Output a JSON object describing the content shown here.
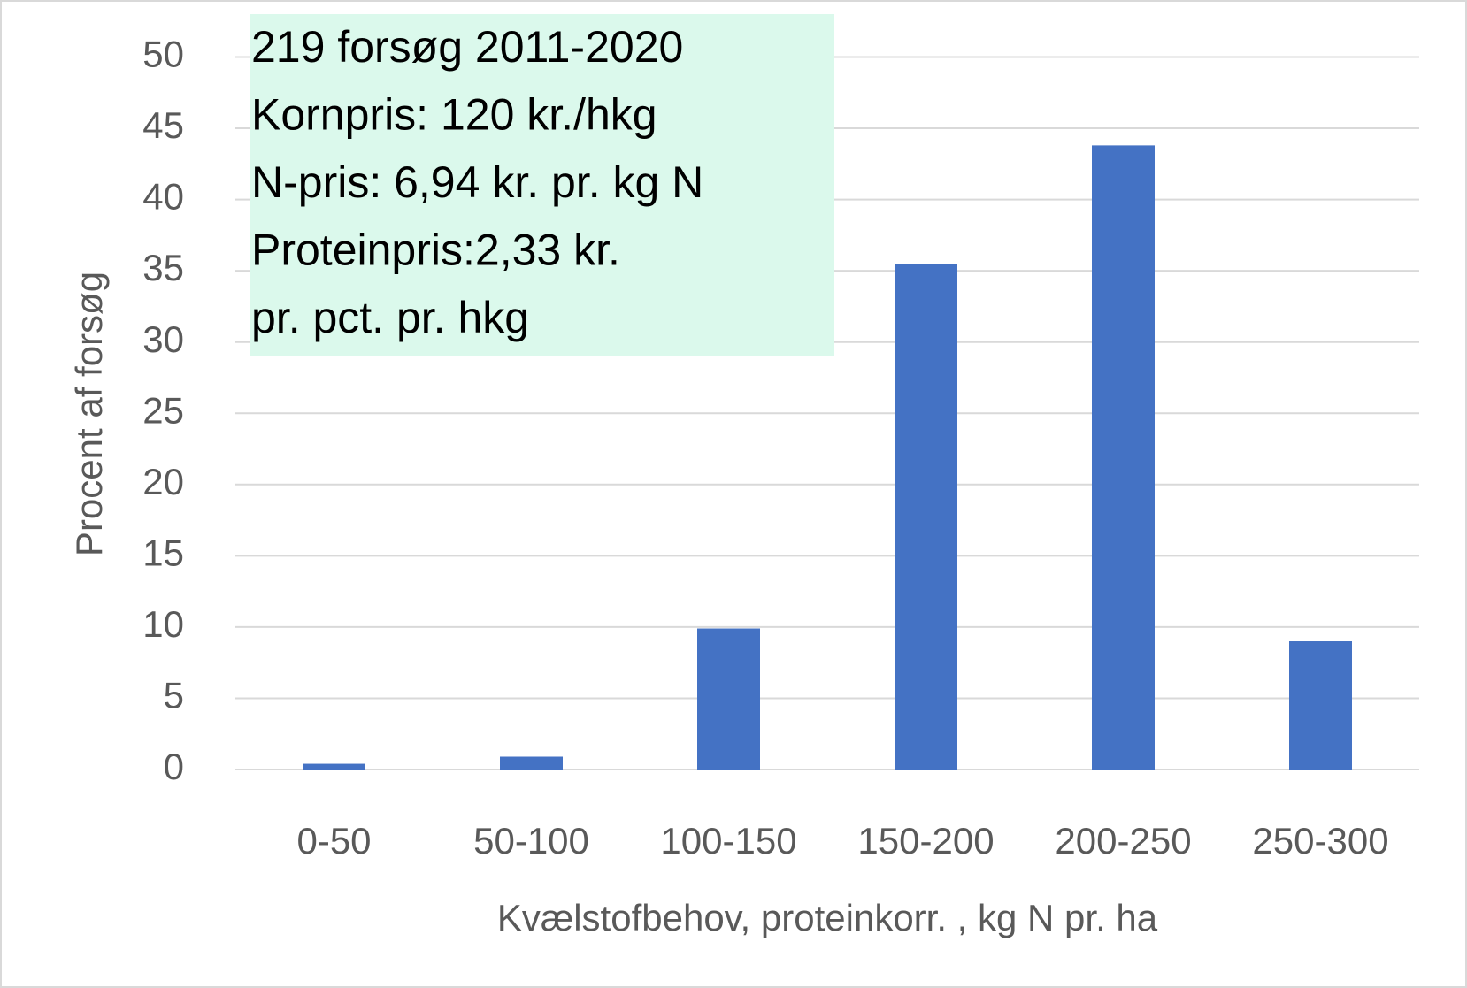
{
  "chart_data": {
    "type": "bar",
    "annotation": [
      "219 forsøg 2011-2020",
      "Kornpris: 120 kr./hkg",
      "N-pris: 6,94 kr. pr. kg N",
      "Proteinpris:2,33 kr.",
      "pr. pct. pr. hkg"
    ],
    "x_label": "Kvælstofbehov, proteinkorr. , kg N pr. ha",
    "y_label": "Procent af forsøg",
    "categories": [
      "0-50",
      "50-100",
      "100-150",
      "150-200",
      "200-250",
      "250-300"
    ],
    "values": [
      0.4,
      0.9,
      9.9,
      35.5,
      43.8,
      9.0
    ],
    "color": "#4472c4",
    "ylim": [
      0,
      50
    ],
    "yticks": [
      0,
      5,
      10,
      15,
      20,
      25,
      30,
      35,
      40,
      45,
      50
    ],
    "grid": true
  }
}
